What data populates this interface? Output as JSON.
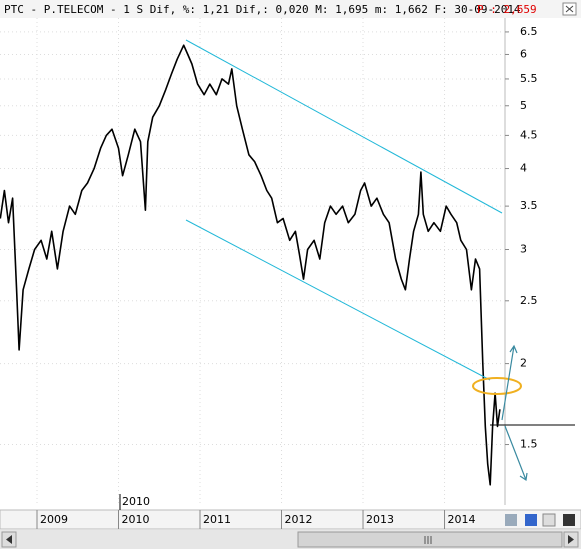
{
  "chart_data": {
    "type": "line",
    "header_text": "PTC - P.TELECOM - 1 S Dif, %: 1,21 Dif,: 0,020 M: 1,695 m: 1,662 F: 30-09-2014",
    "price_text": "P : 2,659",
    "marker_label": "2010",
    "log_scale": true,
    "grid": true,
    "color": "#000000",
    "x": [
      2008.55,
      2008.6,
      2008.65,
      2008.7,
      2008.75,
      2008.78,
      2008.83,
      2008.9,
      2008.97,
      2009.05,
      2009.12,
      2009.18,
      2009.25,
      2009.32,
      2009.4,
      2009.47,
      2009.55,
      2009.62,
      2009.7,
      2009.78,
      2009.85,
      2009.92,
      2010.0,
      2010.05,
      2010.12,
      2010.2,
      2010.27,
      2010.33,
      2010.36,
      2010.42,
      2010.5,
      2010.58,
      2010.65,
      2010.72,
      2010.8,
      2010.85,
      2010.9,
      2010.97,
      2011.05,
      2011.12,
      2011.2,
      2011.27,
      2011.35,
      2011.39,
      2011.45,
      2011.52,
      2011.6,
      2011.67,
      2011.75,
      2011.82,
      2011.88,
      2011.95,
      2012.02,
      2012.1,
      2012.17,
      2012.22,
      2012.27,
      2012.32,
      2012.4,
      2012.47,
      2012.53,
      2012.6,
      2012.67,
      2012.75,
      2012.82,
      2012.9,
      2012.97,
      2013.02,
      2013.1,
      2013.17,
      2013.25,
      2013.32,
      2013.4,
      2013.47,
      2013.52,
      2013.57,
      2013.62,
      2013.68,
      2013.71,
      2013.74,
      2013.8,
      2013.87,
      2013.95,
      2014.02,
      2014.08,
      2014.15,
      2014.2,
      2014.27,
      2014.33,
      2014.38,
      2014.43,
      2014.47,
      2014.5,
      2014.53,
      2014.56,
      2014.59,
      2014.62,
      2014.65,
      2014.68
    ],
    "values": [
      3.35,
      3.7,
      3.3,
      3.6,
      2.6,
      2.1,
      2.6,
      2.8,
      3.0,
      3.1,
      2.9,
      3.2,
      2.8,
      3.2,
      3.5,
      3.4,
      3.7,
      3.8,
      4.0,
      4.3,
      4.5,
      4.6,
      4.3,
      3.9,
      4.2,
      4.6,
      4.4,
      3.45,
      4.4,
      4.8,
      5.0,
      5.3,
      5.6,
      5.9,
      6.2,
      6.0,
      5.8,
      5.4,
      5.2,
      5.4,
      5.2,
      5.5,
      5.4,
      5.7,
      5.0,
      4.6,
      4.2,
      4.1,
      3.9,
      3.7,
      3.6,
      3.3,
      3.35,
      3.1,
      3.2,
      2.95,
      2.7,
      3.0,
      3.1,
      2.9,
      3.3,
      3.5,
      3.4,
      3.5,
      3.3,
      3.4,
      3.7,
      3.8,
      3.5,
      3.6,
      3.4,
      3.3,
      2.9,
      2.7,
      2.6,
      2.9,
      3.2,
      3.4,
      3.95,
      3.4,
      3.2,
      3.3,
      3.2,
      3.5,
      3.4,
      3.3,
      3.1,
      3.0,
      2.6,
      2.9,
      2.8,
      2.0,
      1.6,
      1.4,
      1.3,
      1.6,
      1.8,
      1.6,
      1.7
    ],
    "xlim": [
      2008.546,
      2014.742
    ],
    "xticks": [
      2009,
      2010,
      2011,
      2012,
      2013,
      2014
    ],
    "ylim": [
      1.21,
      6.83
    ],
    "yticks": [
      1.5,
      2,
      2.5,
      3,
      3.5,
      4,
      4.5,
      5,
      5.5,
      6,
      6.5
    ]
  }
}
